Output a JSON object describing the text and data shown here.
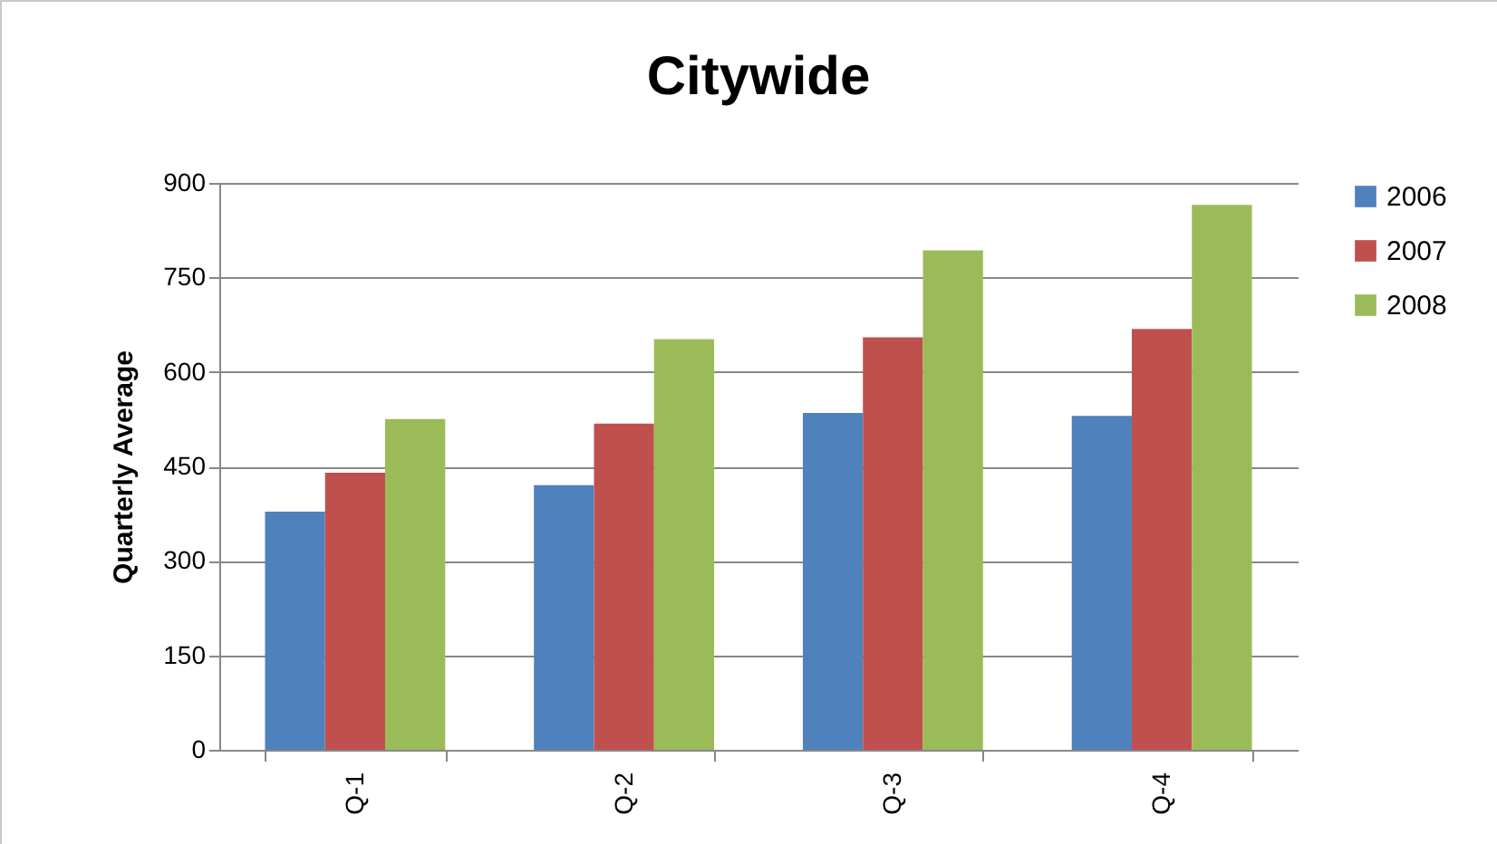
{
  "chart_data": {
    "type": "bar",
    "title": "Citywide",
    "ylabel": "Quarterly Average",
    "categories": [
      "Q-1",
      "Q-2",
      "Q-3",
      "Q-4"
    ],
    "series": [
      {
        "name": "2006",
        "color": "#4f81bd",
        "values": [
          378,
          420,
          535,
          530
        ]
      },
      {
        "name": "2007",
        "color": "#c0504d",
        "values": [
          440,
          518,
          655,
          668
        ]
      },
      {
        "name": "2008",
        "color": "#9bbb59",
        "values": [
          525,
          652,
          793,
          865
        ]
      }
    ],
    "ylim": [
      0,
      900
    ],
    "yticks": [
      0,
      150,
      300,
      450,
      600,
      750,
      900
    ],
    "grid": "y",
    "legend": "right"
  }
}
